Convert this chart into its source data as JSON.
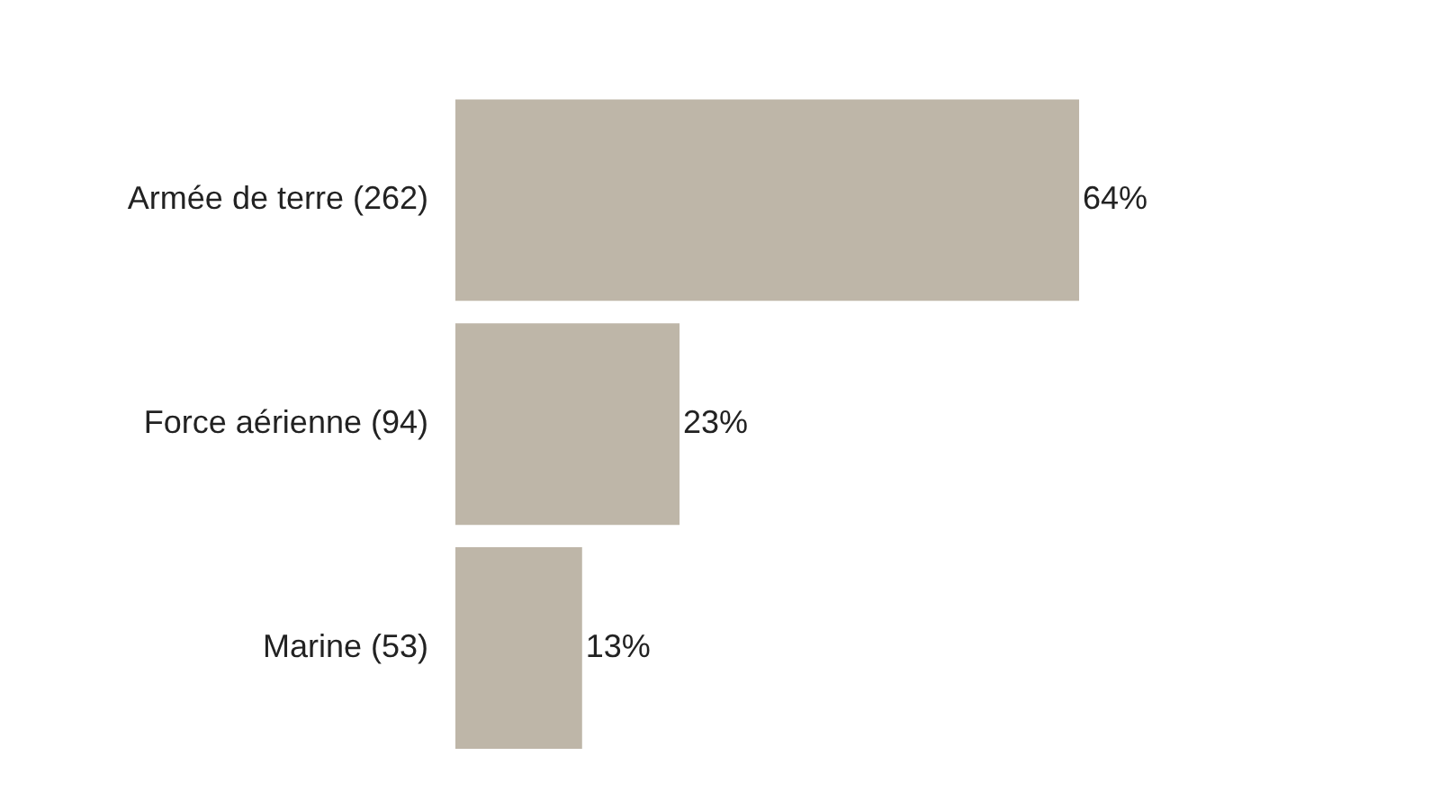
{
  "chart_data": {
    "type": "bar",
    "orientation": "horizontal",
    "categories": [
      "Armée de terre (262)",
      "Force aérienne (94)",
      "Marine (53)"
    ],
    "values": [
      64,
      23,
      13
    ],
    "value_labels": [
      "64%",
      "23%",
      "13%"
    ],
    "color": "#beb6a8"
  }
}
